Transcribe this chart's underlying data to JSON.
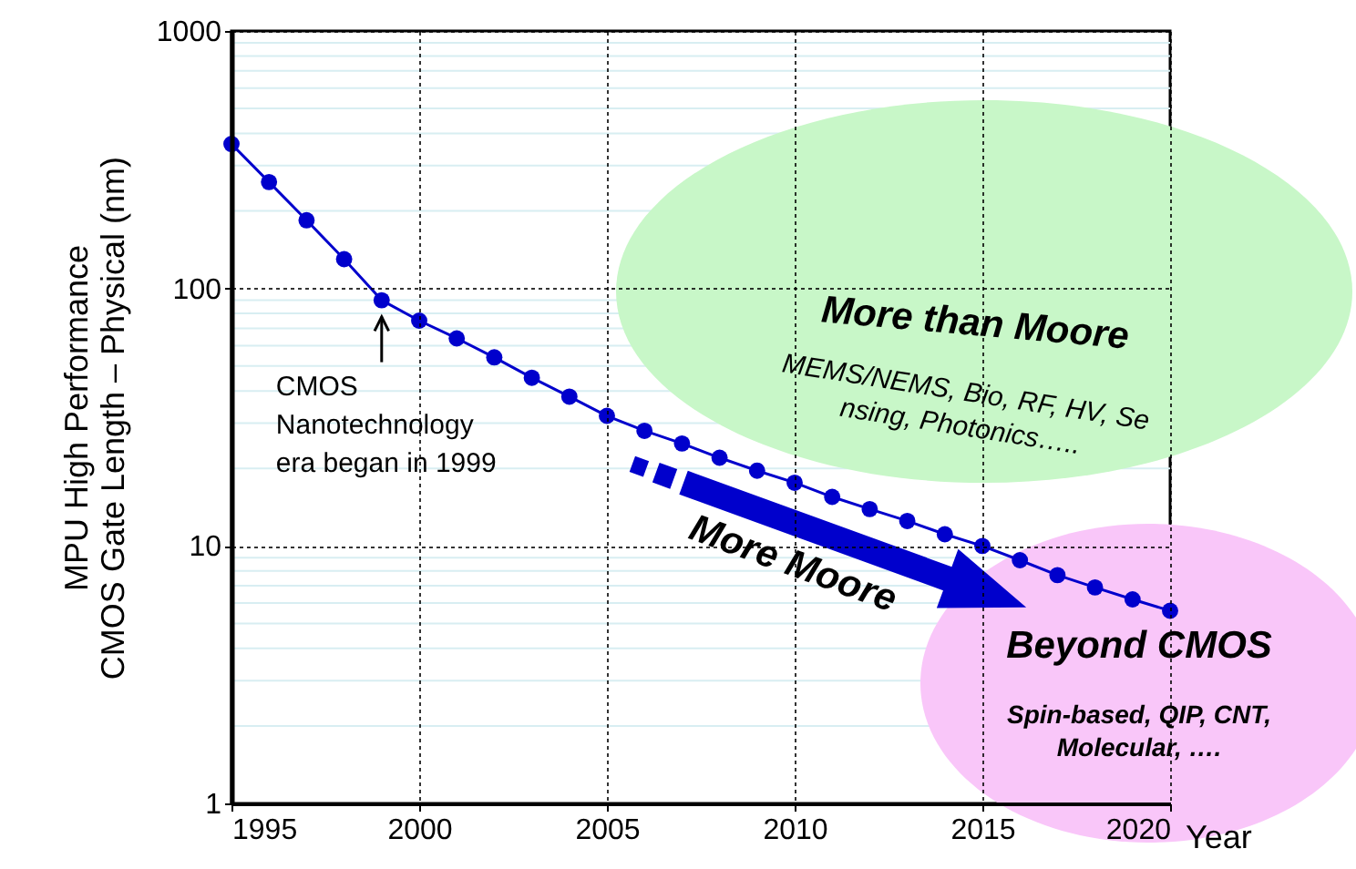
{
  "chart_data": {
    "type": "line",
    "xlabel": "Year",
    "ylabel": "MPU High Performance\nCMOS Gate Length – Physical (nm)",
    "x": [
      1995,
      1996,
      1997,
      1998,
      1999,
      2000,
      2001,
      2002,
      2003,
      2004,
      2005,
      2006,
      2007,
      2008,
      2009,
      2010,
      2011,
      2012,
      2013,
      2014,
      2015,
      2016,
      2017,
      2018,
      2019,
      2020
    ],
    "series": [
      {
        "color": "#0000cc",
        "values": [
          364,
          259,
          184,
          130,
          90,
          75,
          64,
          54,
          45,
          38,
          32,
          28,
          25,
          22,
          19.6,
          17.6,
          15.5,
          13.9,
          12.5,
          11.1,
          10,
          8.8,
          7.7,
          6.9,
          6.2,
          5.6
        ]
      }
    ],
    "xlim": [
      1995,
      2020
    ],
    "xticks": [
      1995,
      2000,
      2005,
      2010,
      2015,
      2020
    ],
    "ylim": [
      1,
      1000
    ],
    "yticks": [
      1,
      10,
      100,
      1000
    ],
    "log": true,
    "grid": true,
    "marker": "circle",
    "line_style": "solid",
    "annotations": [
      {
        "text": "CMOS\nNanotechnology\nera began  in 1999",
        "x": 1999,
        "y": 90
      },
      "More than Moore",
      "MEMS/NEMS, Bio, RF, HV, Se\nnsing, Photonics…..",
      "More Moore",
      "Beyond CMOS",
      "Spin-based, QIP, CNT,\nMolecular, …."
    ]
  }
}
